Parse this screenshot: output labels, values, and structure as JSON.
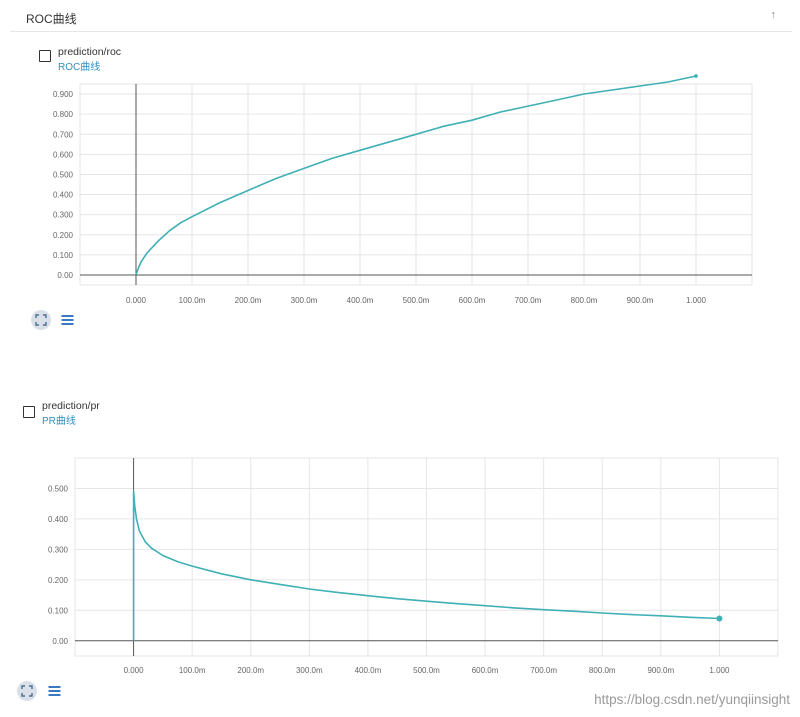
{
  "section": {
    "title": "ROC曲线",
    "toggle_icon": "up-arrow-icon"
  },
  "cards": [
    {
      "name": "prediction/roc",
      "sub": "ROC曲线"
    },
    {
      "name": "prediction/pr",
      "sub": "PR曲线"
    }
  ],
  "watermark": "https://blog.csdn.net/yunqiinsight",
  "colors": {
    "line": "#3fb0b5",
    "grid": "#e6e6e6",
    "axis": "#555555",
    "link": "#2f8fc4"
  },
  "chart_data": [
    {
      "type": "line",
      "title": "",
      "xlabel": "",
      "ylabel": "",
      "xlim": [
        -0.1,
        1.1
      ],
      "ylim": [
        -0.05,
        0.95
      ],
      "x_ticks": [
        0,
        0.1,
        0.2,
        0.3,
        0.4,
        0.5,
        0.6,
        0.7,
        0.8,
        0.9,
        1.0
      ],
      "x_tick_labels": [
        "0.000",
        "100.0m",
        "200.0m",
        "300.0m",
        "400.0m",
        "500.0m",
        "600.0m",
        "700.0m",
        "800.0m",
        "900.0m",
        "1.000"
      ],
      "y_ticks": [
        0,
        0.1,
        0.2,
        0.3,
        0.4,
        0.5,
        0.6,
        0.7,
        0.8,
        0.9
      ],
      "y_tick_labels": [
        "0.00",
        "0.100",
        "0.200",
        "0.300",
        "0.400",
        "0.500",
        "0.600",
        "0.700",
        "0.800",
        "0.900"
      ],
      "grid": true,
      "series": [
        {
          "x": [
            0,
            0.005,
            0.01,
            0.02,
            0.04,
            0.06,
            0.08,
            0.1,
            0.15,
            0.2,
            0.25,
            0.3,
            0.35,
            0.4,
            0.45,
            0.5,
            0.55,
            0.6,
            0.65,
            0.7,
            0.75,
            0.8,
            0.85,
            0.9,
            0.95,
            1.0
          ],
          "y": [
            0,
            0.04,
            0.07,
            0.11,
            0.17,
            0.22,
            0.26,
            0.29,
            0.36,
            0.42,
            0.48,
            0.53,
            0.58,
            0.62,
            0.66,
            0.7,
            0.74,
            0.77,
            0.81,
            0.84,
            0.87,
            0.9,
            0.92,
            0.94,
            0.96,
            0.99
          ]
        }
      ]
    },
    {
      "type": "line",
      "title": "",
      "xlabel": "",
      "ylabel": "",
      "xlim": [
        -0.1,
        1.1
      ],
      "ylim": [
        -0.05,
        0.6
      ],
      "x_ticks": [
        0,
        0.1,
        0.2,
        0.3,
        0.4,
        0.5,
        0.6,
        0.7,
        0.8,
        0.9,
        1.0
      ],
      "x_tick_labels": [
        "0.000",
        "100.0m",
        "200.0m",
        "300.0m",
        "400.0m",
        "500.0m",
        "600.0m",
        "700.0m",
        "800.0m",
        "900.0m",
        "1.000"
      ],
      "y_ticks": [
        0,
        0.1,
        0.2,
        0.3,
        0.4,
        0.5
      ],
      "y_tick_labels": [
        "0.00",
        "0.100",
        "0.200",
        "0.300",
        "0.400",
        "0.500"
      ],
      "grid": true,
      "series": [
        {
          "x": [
            0,
            0,
            0.002,
            0.005,
            0.01,
            0.02,
            0.03,
            0.05,
            0.075,
            0.1,
            0.15,
            0.2,
            0.25,
            0.3,
            0.35,
            0.4,
            0.45,
            0.5,
            0.55,
            0.6,
            0.65,
            0.7,
            0.75,
            0.8,
            0.85,
            0.9,
            0.95,
            1.0
          ],
          "y": [
            0,
            0.49,
            0.44,
            0.4,
            0.36,
            0.325,
            0.305,
            0.28,
            0.26,
            0.245,
            0.22,
            0.2,
            0.185,
            0.17,
            0.158,
            0.148,
            0.138,
            0.13,
            0.122,
            0.115,
            0.108,
            0.102,
            0.097,
            0.091,
            0.086,
            0.082,
            0.077,
            0.073
          ]
        }
      ]
    }
  ]
}
